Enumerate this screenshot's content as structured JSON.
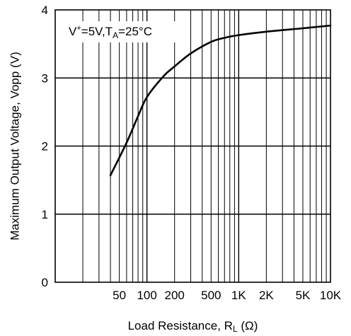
{
  "chart_data": {
    "type": "line",
    "xscale": "log",
    "xlabel": {
      "main": "Load Resistance, R",
      "sub": "L",
      "unit": " (Ω)"
    },
    "ylabel": "Maximum Output Voltage, Vopp (V)",
    "xlim": [
      10,
      10000
    ],
    "ylim": [
      0,
      4
    ],
    "grid": true,
    "x_ticks": [
      {
        "value": 50,
        "label": "50"
      },
      {
        "value": 100,
        "label": "100"
      },
      {
        "value": 200,
        "label": "200"
      },
      {
        "value": 500,
        "label": "500"
      },
      {
        "value": 1000,
        "label": "1K"
      },
      {
        "value": 2000,
        "label": "2K"
      },
      {
        "value": 5000,
        "label": "5K"
      },
      {
        "value": 10000,
        "label": "10K"
      }
    ],
    "y_ticks": [
      {
        "value": 0,
        "label": "0"
      },
      {
        "value": 1,
        "label": "1"
      },
      {
        "value": 2,
        "label": "2"
      },
      {
        "value": 3,
        "label": "3"
      },
      {
        "value": 4,
        "label": "4"
      }
    ],
    "annotation": {
      "v_main": "V",
      "v_sup": "+",
      "v_rest": "=5V,T",
      "t_sub": "A",
      "t_rest": "=25°C"
    },
    "series": [
      {
        "color": "#000000",
        "x": [
          40,
          60,
          80,
          100,
          150,
          200,
          300,
          500,
          700,
          1000,
          2000,
          5000,
          10000
        ],
        "y": [
          1.57,
          2.05,
          2.44,
          2.72,
          3.02,
          3.17,
          3.36,
          3.53,
          3.59,
          3.63,
          3.68,
          3.73,
          3.77
        ]
      }
    ]
  }
}
